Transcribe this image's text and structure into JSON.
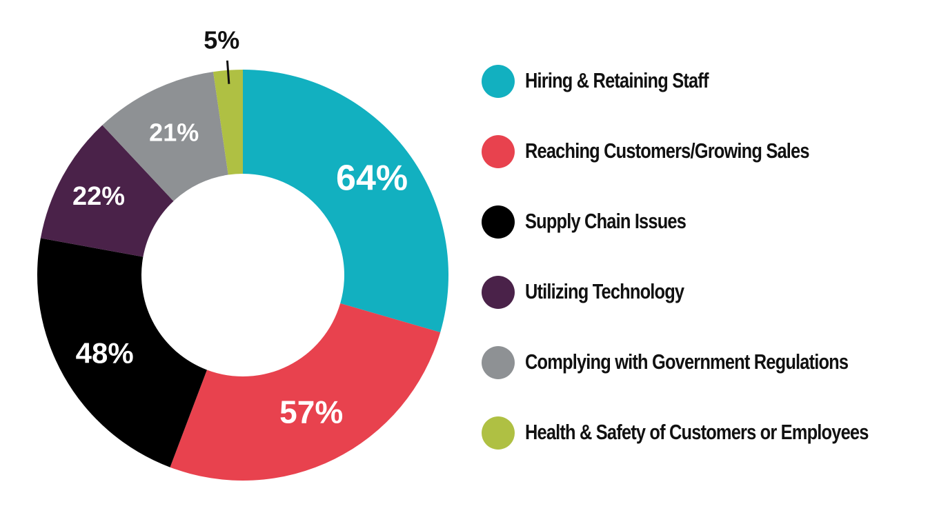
{
  "chart_data": {
    "type": "donut",
    "title": "",
    "series": [
      {
        "name": "Hiring & Retaining Staff",
        "value": 64,
        "label": "64%",
        "color": "#12B0C0"
      },
      {
        "name": "Reaching Customers/Growing Sales",
        "value": 57,
        "label": "57%",
        "color": "#E8424E"
      },
      {
        "name": "Supply Chain Issues",
        "value": 48,
        "label": "48%",
        "color": "#000000"
      },
      {
        "name": "Utilizing Technology",
        "value": 22,
        "label": "22%",
        "color": "#4A2249"
      },
      {
        "name": "Complying with Government Regulations",
        "value": 21,
        "label": "21%",
        "color": "#8E9194"
      },
      {
        "name": "Health & Safety of Customers or Employees",
        "value": 5,
        "label": "5%",
        "color": "#AFC043"
      }
    ],
    "legend_position": "right"
  }
}
